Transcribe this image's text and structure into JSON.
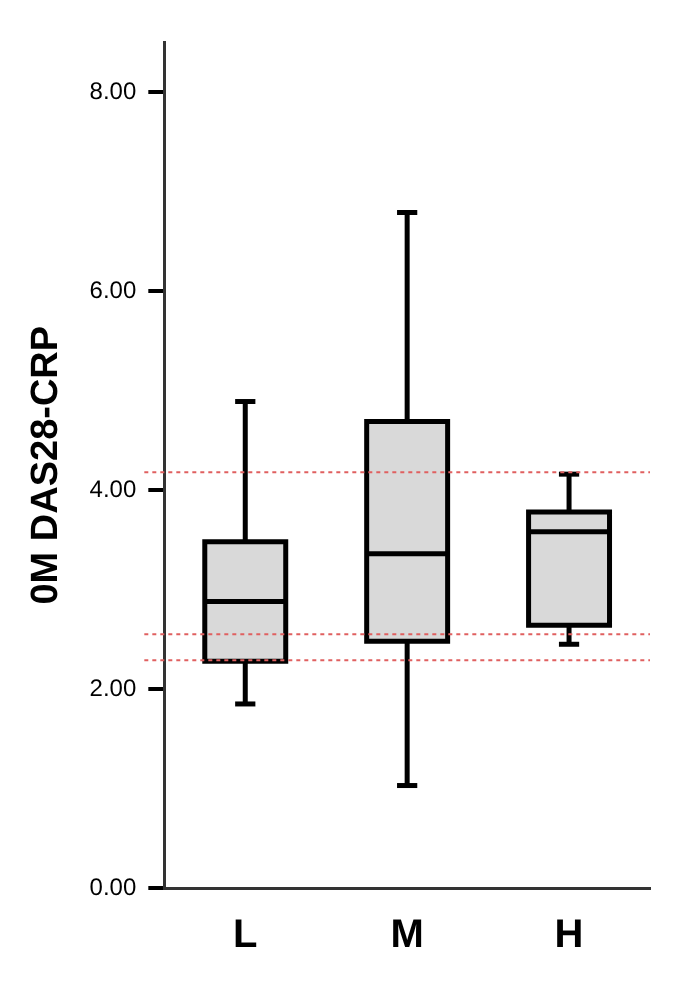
{
  "chart_data": {
    "type": "box",
    "ylabel": "0M DAS28-CRP",
    "categories": [
      "L",
      "M",
      "H"
    ],
    "boxes": [
      {
        "low": 1.85,
        "q1": 2.28,
        "median": 2.88,
        "q3": 3.48,
        "high": 4.89
      },
      {
        "low": 1.03,
        "q1": 2.48,
        "median": 3.36,
        "q3": 4.69,
        "high": 6.79
      },
      {
        "low": 2.45,
        "q1": 2.64,
        "median": 3.58,
        "q3": 3.78,
        "high": 4.16
      }
    ],
    "color": "#d9d9d9",
    "ylim": [
      0,
      8.5
    ],
    "yticks": [
      {
        "value": 0,
        "label": "0.00"
      },
      {
        "value": 2,
        "label": "2.00"
      },
      {
        "value": 4,
        "label": "4.00"
      },
      {
        "value": 6,
        "label": "6.00"
      },
      {
        "value": 8,
        "label": "8.00"
      }
    ],
    "ref_lines": [
      {
        "axis": "y",
        "value": 4.18,
        "color": "#e06060",
        "line_style": "dotted"
      },
      {
        "axis": "y",
        "value": 2.55,
        "color": "#e06060",
        "line_style": "dotted"
      },
      {
        "axis": "y",
        "value": 2.29,
        "color": "#e06060",
        "line_style": "dotted"
      }
    ],
    "grid": false,
    "legend": false
  }
}
